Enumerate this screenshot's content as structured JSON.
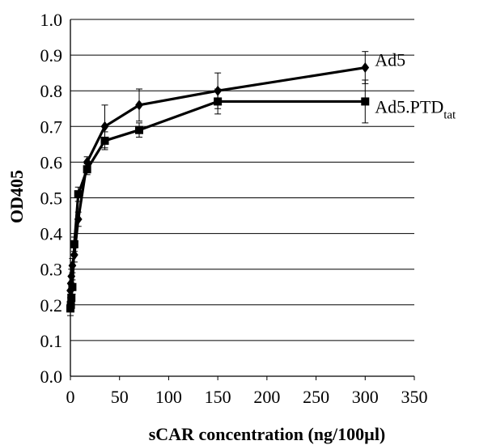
{
  "chart_data": {
    "type": "line",
    "title": "",
    "xlabel": "sCAR concentration (ng/100µl)",
    "ylabel": "OD405",
    "xlim": [
      0,
      350
    ],
    "ylim": [
      0.0,
      1.0
    ],
    "xticks": [
      "0",
      "50",
      "100",
      "150",
      "200",
      "250",
      "300",
      "350"
    ],
    "yticks": [
      "0.0",
      "0.1",
      "0.2",
      "0.3",
      "0.4",
      "0.5",
      "0.6",
      "0.7",
      "0.8",
      "0.9",
      "1.0"
    ],
    "grid": "horizontal",
    "legend": "inline-right",
    "series": [
      {
        "name": "Ad5",
        "marker": "diamond",
        "color": "#000000",
        "x": [
          0,
          0.5,
          1,
          2,
          4,
          8,
          17,
          35,
          70,
          150,
          300
        ],
        "y": [
          0.24,
          0.26,
          0.28,
          0.31,
          0.34,
          0.44,
          0.6,
          0.7,
          0.76,
          0.8,
          0.865
        ],
        "error": [
          0.02,
          0.02,
          0.02,
          0.02,
          0.02,
          0.02,
          0.015,
          0.06,
          0.045,
          0.05,
          0.045
        ]
      },
      {
        "name": "Ad5.PTD",
        "name_subscript": "tat",
        "marker": "square",
        "color": "#000000",
        "x": [
          0,
          0.5,
          1,
          2,
          4,
          8,
          17,
          35,
          70,
          150,
          300
        ],
        "y": [
          0.19,
          0.2,
          0.22,
          0.25,
          0.37,
          0.51,
          0.58,
          0.66,
          0.69,
          0.77,
          0.77
        ],
        "error": [
          0.02,
          0.02,
          0.02,
          0.02,
          0.02,
          0.02,
          0.015,
          0.025,
          0.02,
          0.035,
          0.06
        ]
      }
    ]
  }
}
